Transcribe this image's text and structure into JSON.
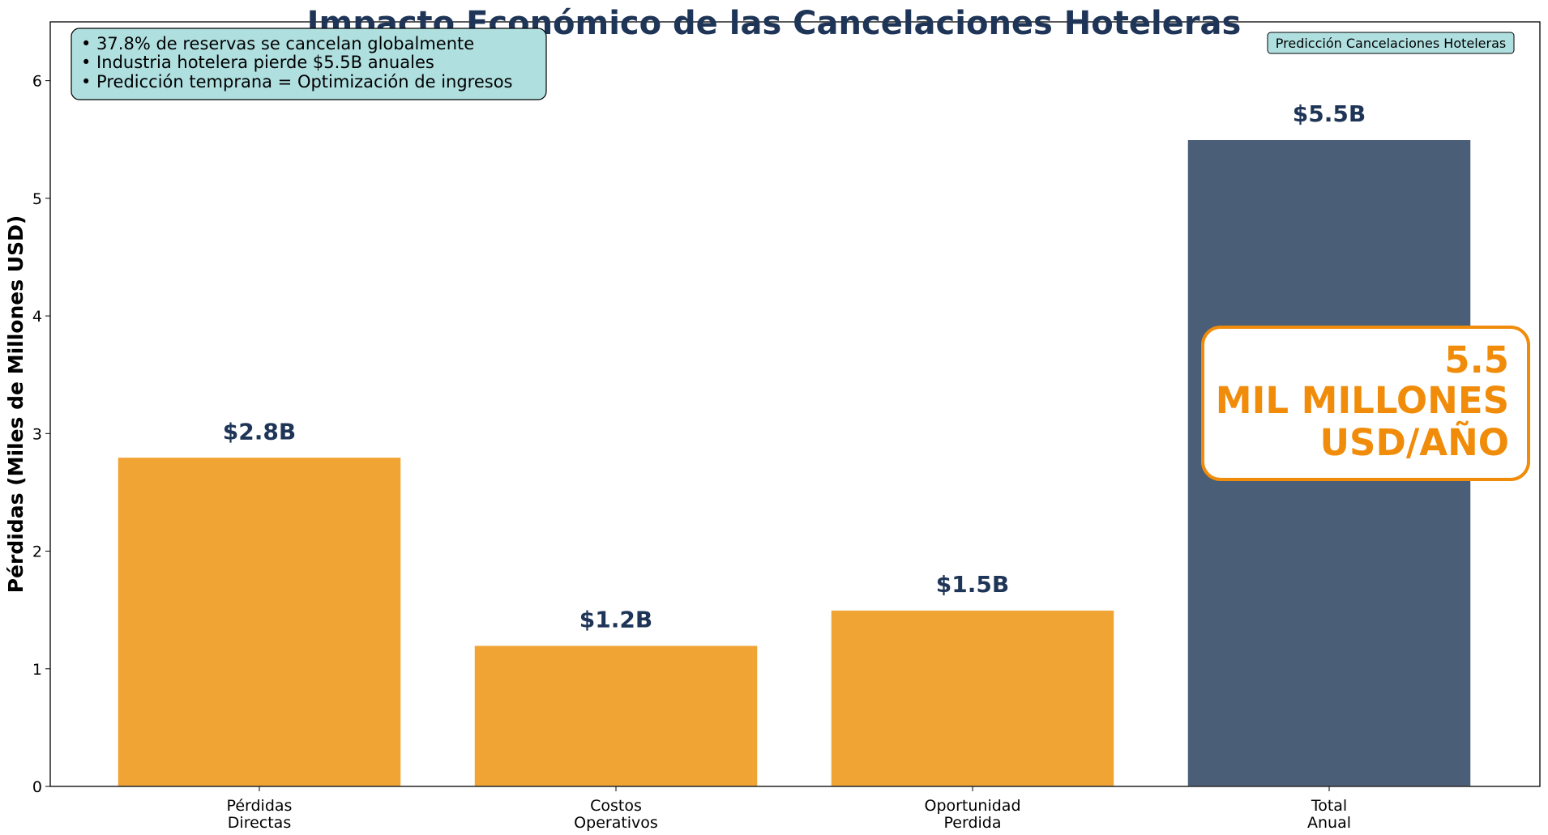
{
  "chart_data": {
    "type": "bar",
    "title": "Impacto Económico de las Cancelaciones Hoteleras",
    "xlabel": "",
    "ylabel": "Pérdidas (Miles de Millones USD)",
    "categories": [
      [
        "Pérdidas",
        "Directas"
      ],
      [
        "Costos",
        "Operativos"
      ],
      [
        "Oportunidad",
        "Perdida"
      ],
      [
        "Total",
        "Anual"
      ]
    ],
    "values": [
      2.8,
      1.2,
      1.5,
      5.5
    ],
    "value_labels": [
      "$2.8B",
      "$1.2B",
      "$1.5B",
      "$5.5B"
    ],
    "bar_colors": [
      "#f0a433",
      "#f0a433",
      "#f0a433",
      "#4a5e78"
    ],
    "ylim": [
      0,
      6.5
    ],
    "yticks": [
      0,
      1,
      2,
      3,
      4,
      5,
      6
    ],
    "grid": false,
    "annotations": {
      "info_box": [
        "• 37.8% de reservas se cancelan globalmente",
        "• Industria hotelera pierde $5.5B anuales",
        "• Predicción temprana = Optimización de ingresos"
      ],
      "tag": "Predicción Cancelaciones Hoteleras",
      "highlight": [
        "5.5",
        "MIL MILLONES",
        "USD/AÑO"
      ]
    }
  },
  "colors": {
    "title": "#1f3557",
    "info_box_bg": "#b0dfe0",
    "highlight_border": "#f08c0a",
    "highlight_text": "#f08c0a"
  }
}
